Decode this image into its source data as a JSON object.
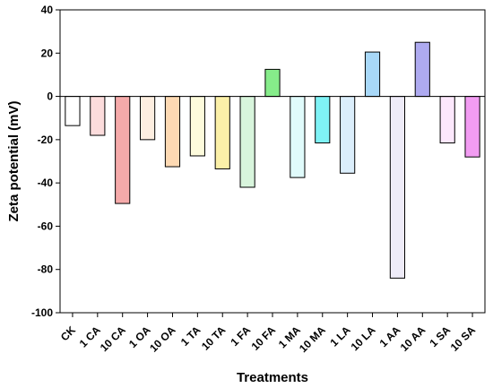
{
  "chart_data": {
    "type": "bar",
    "xlabel": "Treatments",
    "ylabel": "Zeta potential (mV)",
    "ylim": [
      -100,
      40
    ],
    "yticks": [
      -100,
      -80,
      -60,
      -40,
      -20,
      0,
      20,
      40
    ],
    "grid": false,
    "categories": [
      "CK",
      "1 CA",
      "10 CA",
      "1 OA",
      "10 OA",
      "1 TA",
      "10 TA",
      "1 FA",
      "10 FA",
      "1 MA",
      "10 MA",
      "1 LA",
      "10 LA",
      "1 AA",
      "10 AA",
      "1 SA",
      "10 SA"
    ],
    "values": [
      -13.5,
      -18,
      -49.5,
      -20,
      -32.5,
      -27.5,
      -33.5,
      -42,
      12.5,
      -37.5,
      -21.5,
      -35.5,
      20.5,
      -84,
      25,
      -21.5,
      -28
    ],
    "colors": [
      "#ffffff",
      "#fcdcdc",
      "#f5aaaa",
      "#fdeee0",
      "#fdd9b3",
      "#fdfbdc",
      "#fbf0a8",
      "#d8f5dc",
      "#86ec8a",
      "#e0fbfb",
      "#7ff2f5",
      "#dbeefb",
      "#a8d8f8",
      "#eeebf8",
      "#aeaaf0",
      "#fce8fc",
      "#f29cf2"
    ]
  }
}
